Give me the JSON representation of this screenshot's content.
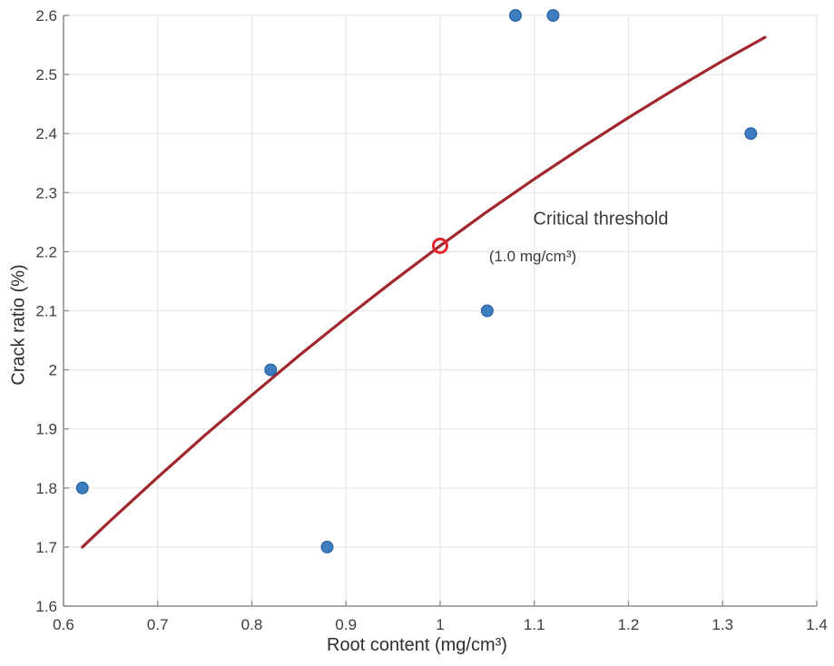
{
  "figure": {
    "background": "#ffffff"
  },
  "chart_data": {
    "type": "scatter",
    "title": "",
    "xlabel": "Root content (mg/cm³)",
    "ylabel": "Crack ratio (%)",
    "xlim": [
      0.6,
      1.4
    ],
    "ylim": [
      1.6,
      2.6
    ],
    "x_ticks": [
      0.6,
      0.7,
      0.8,
      0.9,
      1.0,
      1.1,
      1.2,
      1.3,
      1.4
    ],
    "x_tick_labels": [
      "0.6",
      "0.7",
      "0.8",
      "0.9",
      "1",
      "1.1",
      "1.2",
      "1.3",
      "1.4"
    ],
    "y_ticks": [
      1.6,
      1.7,
      1.8,
      1.9,
      2.0,
      2.1,
      2.2,
      2.3,
      2.4,
      2.5,
      2.6
    ],
    "y_tick_labels": [
      "1.6",
      "1.7",
      "1.8",
      "1.9",
      "2",
      "2.1",
      "2.2",
      "2.3",
      "2.4",
      "2.5",
      "2.6"
    ],
    "grid": true,
    "legend": "none",
    "scatter_series": {
      "name": "observed-data",
      "points": [
        [
          0.62,
          1.8
        ],
        [
          0.82,
          2.0
        ],
        [
          0.88,
          1.7
        ],
        [
          1.05,
          2.1
        ],
        [
          1.08,
          2.6
        ],
        [
          1.12,
          2.6
        ],
        [
          1.33,
          2.4
        ]
      ],
      "fill_color": "#3E7EC0",
      "edge_color": "#2A66A5"
    },
    "fit_curve": {
      "name": "fitted-curve",
      "color": "#A2262D",
      "x": [
        0.62,
        0.65,
        0.7,
        0.75,
        0.8,
        0.85,
        0.9,
        0.95,
        1.0,
        1.05,
        1.1,
        1.15,
        1.2,
        1.25,
        1.3,
        1.345
      ],
      "y": [
        1.7,
        1.745,
        1.818,
        1.889,
        1.957,
        2.024,
        2.088,
        2.15,
        2.21,
        2.268,
        2.323,
        2.376,
        2.427,
        2.476,
        2.523,
        2.563
      ]
    },
    "threshold_marker": {
      "name": "critical-threshold-marker",
      "point": [
        1.0,
        2.21
      ],
      "color": "#E3242B"
    },
    "annotations": [
      {
        "text": "Critical threshold",
        "x": 1.1706,
        "y": 2.257,
        "font_px": 20,
        "color": "#3b3b3b"
      },
      {
        "text": "(1.0 mg/cm³)",
        "x": 1.0983,
        "y": 2.193,
        "font_px": 17,
        "color": "#3b3b3b"
      }
    ],
    "colors": {
      "grid": "#e7e7e7",
      "axis": "#909090",
      "tick_text": "#3d3d3d",
      "label_text": "#2e2e2e"
    }
  }
}
